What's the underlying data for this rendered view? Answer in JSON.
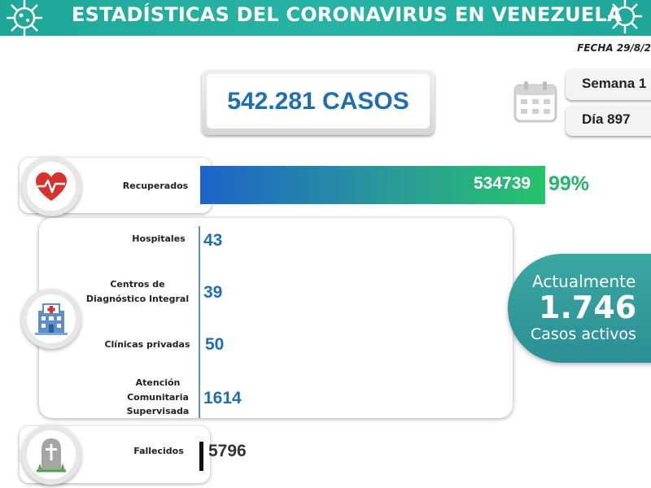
{
  "header": {
    "title": "ESTADÍSTICAS DEL CORONAVIRUS EN VENEZUELA",
    "fecha": "FECHA 29/8/2",
    "accent_color": "#27b3a3"
  },
  "summary": {
    "total_cases": "542.281 CASOS",
    "semana": "Semana 1",
    "dia": "Día 897",
    "calendar_icon": "calendar-icon"
  },
  "recuperados": {
    "label": "Recuperados",
    "value": "534739",
    "percent": "99%",
    "icon": "heart-pulse-icon"
  },
  "hospitalizados": {
    "icon": "hospital-building-icon"
  },
  "activos": {
    "line1": "Actualmente",
    "line2": "1.746",
    "line3": "Casos activos",
    "color": "#2c8f95"
  },
  "fallecidos": {
    "label": "Fallecidos",
    "value": "5796",
    "icon": "gravestone-icon"
  },
  "chart_data": {
    "type": "bar",
    "orientation": "horizontal",
    "title": "ESTADÍSTICAS DEL CORONAVIRUS EN VENEZUELA",
    "categories": [
      "Recuperados",
      "Hospitales",
      "Centros de Diagnóstico Integral",
      "Clínicas privadas",
      "Atención Comunitaria Supervisada",
      "Fallecidos"
    ],
    "label_lines": [
      [
        "Recuperados"
      ],
      [
        "Hospitales"
      ],
      [
        "Centros de",
        "Diagnóstico Integral"
      ],
      [
        "Clínicas privadas"
      ],
      [
        "Atención",
        "Comunitaria",
        "Supervisada"
      ],
      [
        "Fallecidos"
      ]
    ],
    "values": [
      534739,
      43,
      39,
      50,
      1614,
      5796
    ],
    "total": 542281,
    "active": 1746
  }
}
